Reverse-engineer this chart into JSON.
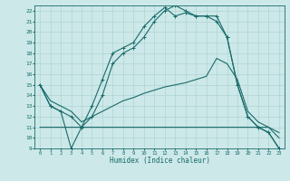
{
  "xlabel": "Humidex (Indice chaleur)",
  "xlim": [
    -0.5,
    23.5
  ],
  "ylim": [
    9,
    22.5
  ],
  "yticks": [
    9,
    10,
    11,
    12,
    13,
    14,
    15,
    16,
    17,
    18,
    19,
    20,
    21,
    22
  ],
  "xticks": [
    0,
    1,
    2,
    3,
    4,
    5,
    6,
    7,
    8,
    9,
    10,
    11,
    12,
    13,
    14,
    15,
    16,
    17,
    18,
    19,
    20,
    21,
    22,
    23
  ],
  "bg_color": "#cce8e8",
  "grid_color": "#b0d4d4",
  "line_color": "#1a6b6b",
  "line1_x": [
    0,
    1,
    2,
    3,
    4,
    5,
    6,
    7,
    8,
    9,
    10,
    11,
    12,
    13,
    14,
    15,
    16,
    17,
    18,
    19,
    20,
    21,
    22,
    23
  ],
  "line1_y": [
    15.0,
    13.0,
    12.5,
    9.0,
    11.0,
    13.0,
    15.5,
    18.0,
    18.5,
    19.0,
    20.5,
    21.5,
    22.3,
    21.5,
    21.8,
    21.5,
    21.5,
    21.0,
    19.5,
    15.0,
    12.0,
    11.0,
    10.5,
    9.0
  ],
  "line2_x": [
    0,
    1,
    2,
    3,
    4,
    5,
    6,
    7,
    8,
    9,
    10,
    11,
    12,
    13,
    14,
    15,
    16,
    17,
    18,
    19,
    20,
    21,
    22,
    23
  ],
  "line2_y": [
    15.0,
    13.0,
    12.5,
    12.0,
    11.0,
    12.0,
    14.0,
    17.0,
    18.0,
    18.5,
    19.5,
    21.0,
    22.0,
    22.5,
    22.0,
    21.5,
    21.5,
    21.5,
    19.5,
    15.0,
    12.0,
    11.0,
    10.5,
    9.0
  ],
  "line3_x": [
    0,
    1,
    2,
    3,
    4,
    5,
    6,
    7,
    8,
    9,
    10,
    11,
    12,
    13,
    14,
    15,
    16,
    17,
    18,
    19,
    20,
    21,
    22,
    23
  ],
  "line3_y": [
    15.0,
    13.5,
    13.0,
    12.5,
    11.5,
    12.0,
    12.5,
    13.0,
    13.5,
    13.8,
    14.2,
    14.5,
    14.8,
    15.0,
    15.2,
    15.5,
    15.8,
    17.5,
    17.0,
    15.5,
    12.5,
    11.5,
    11.0,
    10.0
  ],
  "line4_x": [
    0,
    1,
    2,
    3,
    4,
    5,
    6,
    7,
    8,
    9,
    10,
    11,
    12,
    13,
    14,
    15,
    16,
    17,
    18,
    19,
    20,
    21,
    22,
    23
  ],
  "line4_y": [
    11.0,
    11.0,
    11.0,
    11.0,
    11.0,
    11.0,
    11.0,
    11.0,
    11.0,
    11.0,
    11.0,
    11.0,
    11.0,
    11.0,
    11.0,
    11.0,
    11.0,
    11.0,
    11.0,
    11.0,
    11.0,
    11.0,
    11.0,
    10.5
  ]
}
